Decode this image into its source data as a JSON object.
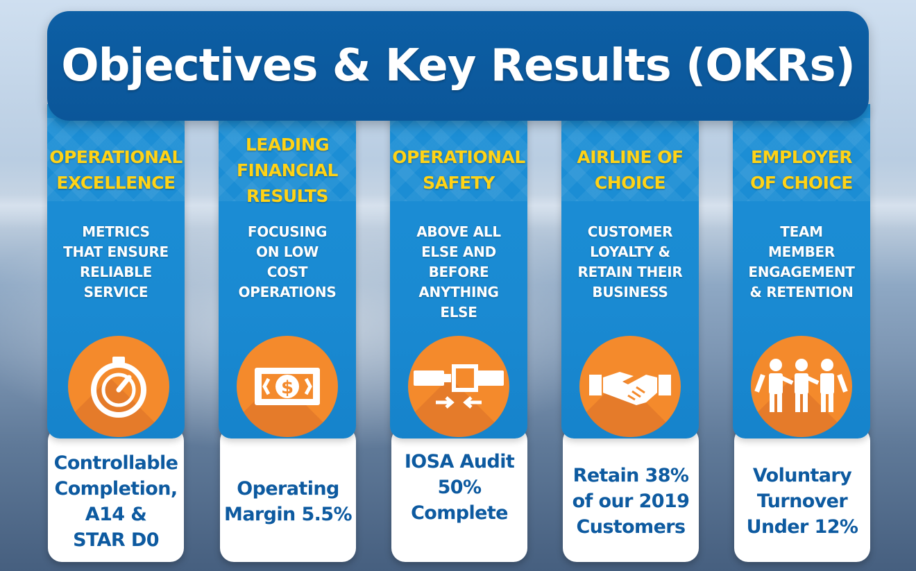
{
  "header": {
    "title": "Objectives & Key Results (OKRs)"
  },
  "colors": {
    "header_blue": "#0d5fa5",
    "column_blue": "#1a8ad2",
    "objective_yellow": "#ffd316",
    "icon_orange": "#f48a2c",
    "result_blue": "#0d5aa0"
  },
  "columns": [
    {
      "objective": "OPERATIONAL\nEXCELLENCE",
      "description": "METRICS\nTHAT ENSURE\nRELIABLE\nSERVICE",
      "icon": "stopwatch-icon",
      "key_result": "Controllable\nCompletion,\nA14 &\nSTAR D0"
    },
    {
      "objective": "LEADING\nFINANCIAL\nRESULTS",
      "description": "FOCUSING\nON LOW\nCOST\nOPERATIONS",
      "icon": "dollar-bill-icon",
      "key_result": "Operating\nMargin 5.5%"
    },
    {
      "objective": "OPERATIONAL\nSAFETY",
      "description": "ABOVE ALL\nELSE AND\nBEFORE\nANYTHING\nELSE",
      "icon": "seatbelt-icon",
      "key_result": "IOSA Audit\n50%\nComplete"
    },
    {
      "objective": "AIRLINE OF\nCHOICE",
      "description": "CUSTOMER\nLOYALTY &\nRETAIN THEIR\nBUSINESS",
      "icon": "handshake-icon",
      "key_result": "Retain 38%\nof our 2019\nCustomers"
    },
    {
      "objective": "EMPLOYER\nOF CHOICE",
      "description": "TEAM\nMEMBER\nENGAGEMENT\n& RETENTION",
      "icon": "team-people-icon",
      "key_result": "Voluntary\nTurnover\nUnder 12%"
    }
  ]
}
